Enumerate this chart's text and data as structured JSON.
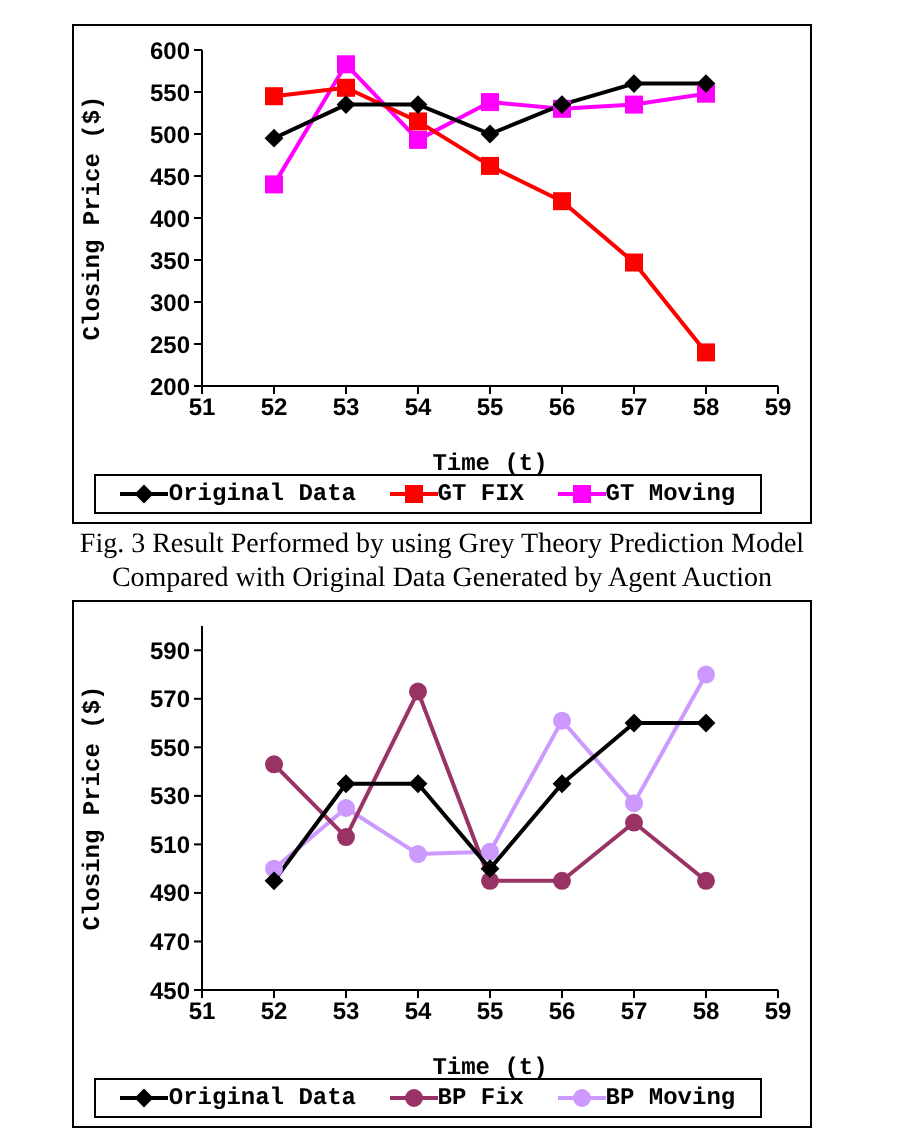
{
  "chart_data": [
    {
      "type": "line",
      "xlabel": "Time (t)",
      "ylabel": "Closing Price ($)",
      "x": [
        52,
        53,
        54,
        55,
        56,
        57,
        58
      ],
      "xlim": [
        51,
        59
      ],
      "xticks": [
        51,
        52,
        53,
        54,
        55,
        56,
        57,
        58,
        59
      ],
      "ylim": [
        200,
        600
      ],
      "yticks": [
        200,
        250,
        300,
        350,
        400,
        450,
        500,
        550,
        600
      ],
      "grid": false,
      "legend": "bottom",
      "series": [
        {
          "name": "Original Data",
          "color": "#000000",
          "marker": "diamond",
          "values": [
            495,
            535,
            535,
            500,
            535,
            560,
            560
          ]
        },
        {
          "name": "GT FIX",
          "color": "#ff0000",
          "marker": "square",
          "values": [
            545,
            555,
            515,
            462,
            420,
            347,
            240
          ]
        },
        {
          "name": "GT Moving",
          "color": "#ff00ff",
          "marker": "square",
          "values": [
            440,
            583,
            493,
            538,
            530,
            535,
            548
          ]
        }
      ],
      "annotations": [
        "Fig. 3 Result Performed by using Grey Theory Prediction Model Compared with Original Data Generated by Agent Auction"
      ]
    },
    {
      "type": "line",
      "xlabel": "Time (t)",
      "ylabel": "Closing Price ($)",
      "x": [
        52,
        53,
        54,
        55,
        56,
        57,
        58
      ],
      "xlim": [
        51,
        59
      ],
      "xticks": [
        51,
        52,
        53,
        54,
        55,
        56,
        57,
        58,
        59
      ],
      "ylim": [
        450,
        600
      ],
      "yticks": [
        450,
        470,
        490,
        510,
        530,
        550,
        570,
        590
      ],
      "grid": false,
      "legend": "bottom",
      "series": [
        {
          "name": "Original Data",
          "color": "#000000",
          "marker": "diamond",
          "values": [
            495,
            535,
            535,
            500,
            535,
            560,
            560
          ]
        },
        {
          "name": "BP Fix",
          "color": "#993366",
          "marker": "circle",
          "values": [
            543,
            513,
            573,
            495,
            495,
            519,
            495
          ]
        },
        {
          "name": "BP Moving",
          "color": "#cc99ff",
          "marker": "circle",
          "values": [
            500,
            525,
            506,
            507,
            561,
            527,
            580
          ]
        }
      ]
    }
  ]
}
